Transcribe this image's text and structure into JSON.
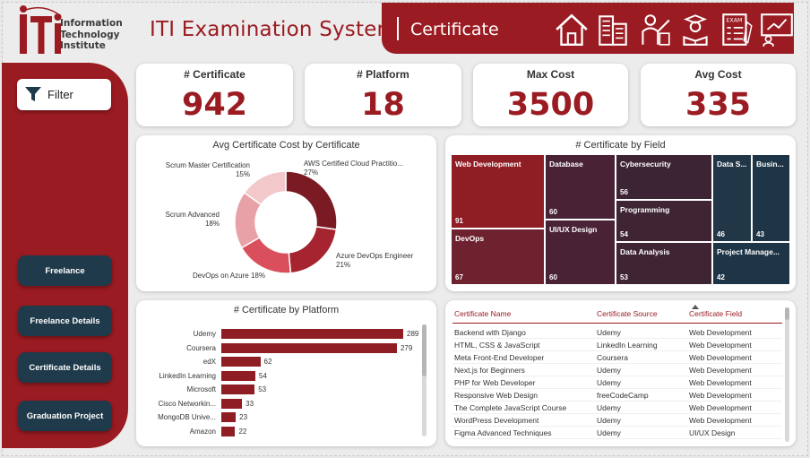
{
  "header": {
    "logo_text": [
      "Information",
      "Technology",
      "Institute"
    ],
    "app_title": "ITI Examination System",
    "page_title": "Certificate",
    "nav_icons": [
      "home-icon",
      "building-icon",
      "instructor-icon",
      "student-icon",
      "exam-icon",
      "presentation-icon"
    ]
  },
  "sidebar": {
    "filter_label": "Filter",
    "buttons": [
      "Freelance",
      "Freelance Details",
      "Certificate Details",
      "Graduation Project"
    ]
  },
  "kpis": [
    {
      "label": "# Certificate",
      "value": "942"
    },
    {
      "label": "# Platform",
      "value": "18"
    },
    {
      "label": "Max Cost",
      "value": "3500"
    },
    {
      "label": "Avg Cost",
      "value": "335"
    }
  ],
  "donut": {
    "title": "Avg Certificate Cost by Certificate",
    "slices": [
      {
        "name": "AWS Certified Cloud Practitio...",
        "pct": "27%",
        "value": 27,
        "color": "#7a1a22"
      },
      {
        "name": "Azure DevOps Engineer",
        "pct": "21%",
        "value": 21,
        "color": "#a52430"
      },
      {
        "name": "DevOps on Azure",
        "pct": "18%",
        "value": 18,
        "color": "#d9505c"
      },
      {
        "name": "Scrum Advanced",
        "pct": "18%",
        "value": 18,
        "color": "#e8a1a7"
      },
      {
        "name": "Scrum Master Certification",
        "pct": "15%",
        "value": 15,
        "color": "#f2c8cb"
      }
    ]
  },
  "treemap": {
    "title": "# Certificate by Field",
    "cells": [
      {
        "name": "Web Development",
        "value": "91",
        "color": "#8f1d24"
      },
      {
        "name": "DevOps",
        "value": "67",
        "color": "#6e2230"
      },
      {
        "name": "Database",
        "value": "60",
        "color": "#4a2235"
      },
      {
        "name": "UI/UX Design",
        "value": "60",
        "color": "#4a2235"
      },
      {
        "name": "Cybersecurity",
        "value": "56",
        "color": "#3d2434"
      },
      {
        "name": "Programming",
        "value": "54",
        "color": "#3f2533"
      },
      {
        "name": "Data Analysis",
        "value": "53",
        "color": "#3f2533"
      },
      {
        "name": "Data S...",
        "value": "46",
        "color": "#213747"
      },
      {
        "name": "Busin...",
        "value": "43",
        "color": "#1d3546"
      },
      {
        "name": "Project Manage...",
        "value": "42",
        "color": "#1d3546"
      }
    ]
  },
  "chart_data": {
    "type": "bar",
    "title": "# Certificate by Platform",
    "categories": [
      "Udemy",
      "Coursera",
      "edX",
      "LinkedIn Learning",
      "Microsoft",
      "Cisco Networkin...",
      "MongoDB Unive...",
      "Amazon"
    ],
    "values": [
      289,
      279,
      62,
      54,
      53,
      33,
      23,
      22
    ],
    "xlim": [
      0,
      289
    ]
  },
  "table": {
    "headers": [
      "Certificate Name",
      "Certificate Source",
      "Certificate Field"
    ],
    "rows": [
      [
        "Backend with Django",
        "Udemy",
        "Web Development"
      ],
      [
        "HTML, CSS & JavaScript",
        "LinkedIn Learning",
        "Web Development"
      ],
      [
        "Meta Front-End Developer",
        "Coursera",
        "Web Development"
      ],
      [
        "Next.js for Beginners",
        "Udemy",
        "Web Development"
      ],
      [
        "PHP for Web Developer",
        "Udemy",
        "Web Development"
      ],
      [
        "Responsive Web Design",
        "freeCodeCamp",
        "Web Development"
      ],
      [
        "The Complete JavaScript Course",
        "Udemy",
        "Web Development"
      ],
      [
        "WordPress Development",
        "Udemy",
        "Web Development"
      ],
      [
        "Figma Advanced Techniques",
        "Udemy",
        "UI/UX Design"
      ]
    ]
  },
  "colors": {
    "brand": "#9b1b22",
    "navy": "#1f3a4a"
  }
}
